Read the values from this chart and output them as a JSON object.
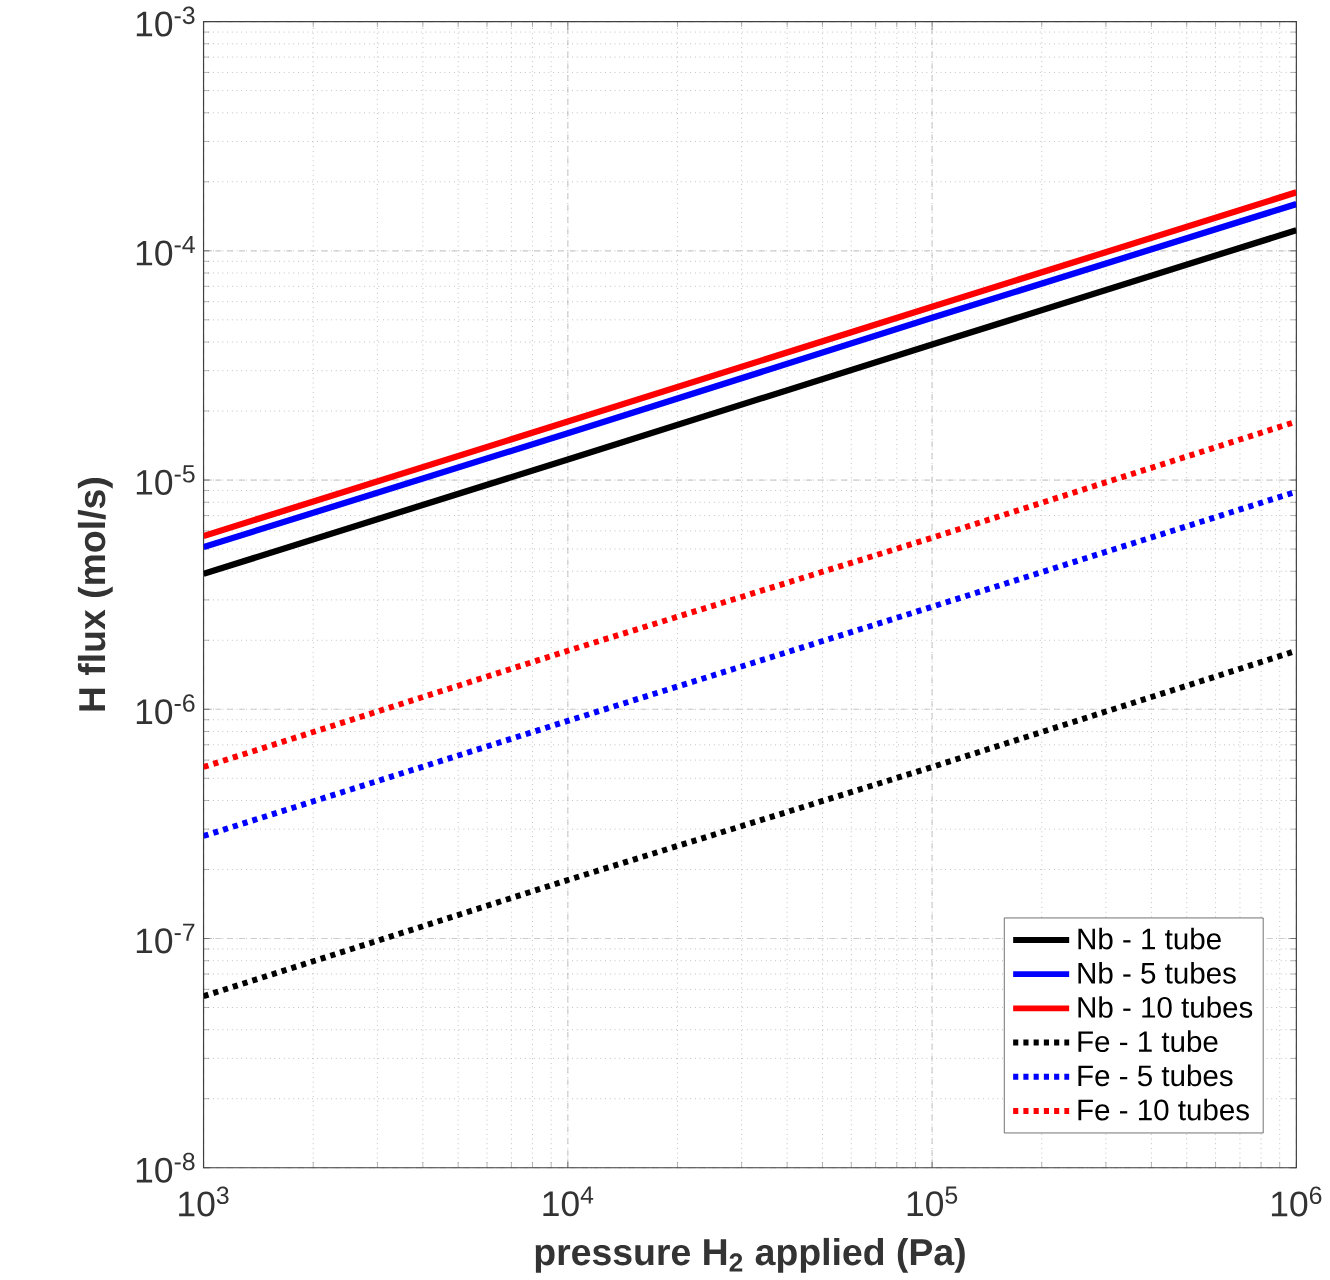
{
  "chart_data": {
    "type": "line",
    "xlabel": "pressure H$_{2}$ applied (Pa)",
    "ylabel": "H flux (mol/s)",
    "log": "xy",
    "grid": true,
    "legend": "bottom right",
    "xlim": [
      1000,
      1000000
    ],
    "ylim": [
      1e-08,
      0.001
    ],
    "xticks": [
      {
        "value": 1000,
        "label": "10$^{3}$"
      },
      {
        "value": 10000,
        "label": "10$^{4}$"
      },
      {
        "value": 100000,
        "label": "10$^{5}$"
      },
      {
        "value": 1000000,
        "label": "10$^{6}$"
      }
    ],
    "yticks": [
      {
        "value": 1e-08,
        "label": "10$^{-8}$"
      },
      {
        "value": 1e-07,
        "label": "10$^{-7}$"
      },
      {
        "value": 1e-06,
        "label": "10$^{-6}$"
      },
      {
        "value": 1e-05,
        "label": "10$^{-5}$"
      },
      {
        "value": 0.0001,
        "label": "10$^{-4}$"
      },
      {
        "value": 0.001,
        "label": "10$^{-3}$"
      }
    ],
    "x": [
      1000,
      10000,
      100000,
      1000000
    ],
    "series": [
      {
        "name": "Nb - 1 tube",
        "color": "#000000",
        "line_style": "solid",
        "values": [
          3.9e-06,
          1.23e-05,
          3.9e-05,
          0.000123
        ]
      },
      {
        "name": "Nb - 5 tubes",
        "color": "#0000ff",
        "line_style": "solid",
        "values": [
          5.1e-06,
          1.6e-05,
          5.1e-05,
          0.00016
        ]
      },
      {
        "name": "Nb - 10 tubes",
        "color": "#ff0000",
        "line_style": "solid",
        "values": [
          5.7e-06,
          1.8e-05,
          5.7e-05,
          0.00018
        ]
      },
      {
        "name": "Fe - 1 tube",
        "color": "#000000",
        "line_style": "dotted",
        "values": [
          5.6e-08,
          1.8e-07,
          5.6e-07,
          1.8e-06
        ]
      },
      {
        "name": "Fe - 5 tubes",
        "color": "#0000ff",
        "line_style": "dotted",
        "values": [
          2.8e-07,
          8.9e-07,
          2.8e-06,
          8.9e-06
        ]
      },
      {
        "name": "Fe - 10 tubes",
        "color": "#ff0000",
        "line_style": "dotted",
        "values": [
          5.6e-07,
          1.8e-06,
          5.6e-06,
          1.8e-05
        ]
      }
    ]
  }
}
